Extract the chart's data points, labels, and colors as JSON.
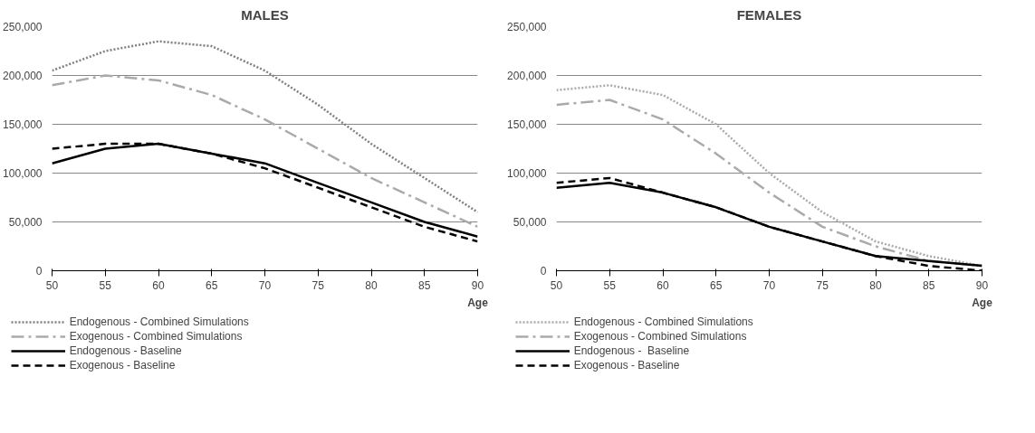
{
  "chart_data": [
    {
      "type": "line",
      "title": "MALES",
      "xlabel": "Age",
      "x": [
        50,
        55,
        60,
        65,
        70,
        75,
        80,
        85,
        90
      ],
      "xlim": [
        50,
        90
      ],
      "xticks": [
        50,
        55,
        60,
        65,
        70,
        75,
        80,
        85,
        90
      ],
      "ylim": [
        0,
        250000
      ],
      "yticks": [
        {
          "value": 0,
          "label": "0"
        },
        {
          "value": 50000,
          "label": "50,000"
        },
        {
          "value": 100000,
          "label": "100,000"
        },
        {
          "value": 150000,
          "label": "150,000"
        },
        {
          "value": 200000,
          "label": "200,000"
        },
        {
          "value": 250000,
          "label": "250,000"
        }
      ],
      "grid": "y",
      "legend": "bottom",
      "marker": "none",
      "series": [
        {
          "name": "Endogenous - Combined Simulations",
          "color": "#808080",
          "line_style": "dotted",
          "values": [
            205000,
            225000,
            235000,
            230000,
            205000,
            170000,
            130000,
            95000,
            60000
          ]
        },
        {
          "name": "Exogenous - Combined Simulations",
          "color": "#aaaaaa",
          "line_style": "dashdot",
          "values": [
            190000,
            200000,
            195000,
            180000,
            155000,
            125000,
            95000,
            70000,
            45000
          ]
        },
        {
          "name": "Endogenous - Baseline",
          "color": "#000000",
          "line_style": "solid",
          "values": [
            110000,
            125000,
            130000,
            120000,
            110000,
            90000,
            70000,
            50000,
            35000
          ]
        },
        {
          "name": "Exogenous - Baseline",
          "color": "#000000",
          "line_style": "dashed",
          "values": [
            125000,
            130000,
            130000,
            120000,
            105000,
            85000,
            65000,
            45000,
            30000
          ]
        }
      ]
    },
    {
      "type": "line",
      "title": "FEMALES",
      "xlabel": "Age",
      "x": [
        50,
        55,
        60,
        65,
        70,
        75,
        80,
        85,
        90
      ],
      "xlim": [
        50,
        90
      ],
      "xticks": [
        50,
        55,
        60,
        65,
        70,
        75,
        80,
        85,
        90
      ],
      "ylim": [
        0,
        250000
      ],
      "yticks": [
        {
          "value": 0,
          "label": "0"
        },
        {
          "value": 50000,
          "label": "50,000"
        },
        {
          "value": 100000,
          "label": "100,000"
        },
        {
          "value": 150000,
          "label": "150,000"
        },
        {
          "value": 200000,
          "label": "200,000"
        },
        {
          "value": 250000,
          "label": "250,000"
        }
      ],
      "grid": "y",
      "legend": "bottom",
      "marker": "none",
      "series": [
        {
          "name": "Endogenous - Combined Simulations",
          "color": "#aaaaaa",
          "line_style": "dotted",
          "values": [
            185000,
            190000,
            180000,
            150000,
            100000,
            60000,
            30000,
            15000,
            5000
          ]
        },
        {
          "name": "Exogenous - Combined Simulations",
          "color": "#aaaaaa",
          "line_style": "dashdot",
          "values": [
            170000,
            175000,
            155000,
            120000,
            80000,
            45000,
            25000,
            10000,
            5000
          ]
        },
        {
          "name": "Endogenous -  Baseline",
          "color": "#000000",
          "line_style": "solid",
          "values": [
            85000,
            90000,
            80000,
            65000,
            45000,
            30000,
            15000,
            10000,
            5000
          ]
        },
        {
          "name": "Exogenous - Baseline",
          "color": "#000000",
          "line_style": "dashed",
          "values": [
            90000,
            95000,
            80000,
            65000,
            45000,
            30000,
            15000,
            5000,
            0
          ]
        }
      ]
    }
  ]
}
